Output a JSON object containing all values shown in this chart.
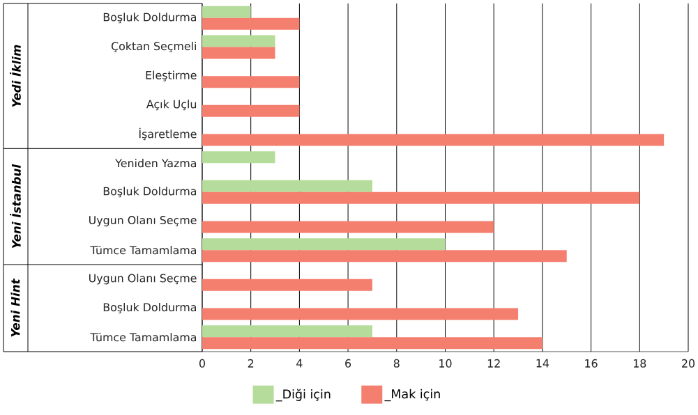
{
  "chart_data": {
    "type": "bar",
    "orientation": "horizontal",
    "categories": [
      "Boşluk Doldurma",
      "Çoktan Seçmeli",
      "Eleştirme",
      "Açık Uçlu",
      "İşaretleme",
      "Yeniden Yazma",
      "Boşluk Doldurma",
      "Uygun Olanı Seçme",
      "Tümce Tamamlama",
      "Uygun Olanı Seçme",
      "Boşluk Doldurma",
      "Tümce Tamamlama"
    ],
    "series": [
      {
        "name": "_Diği için",
        "color": "#b5dc9a",
        "values": [
          2,
          3,
          null,
          null,
          null,
          3,
          7,
          null,
          10,
          null,
          null,
          7
        ]
      },
      {
        "name": "_Mak için",
        "color": "#f47f6f",
        "values": [
          4,
          3,
          4,
          4,
          19,
          null,
          18,
          12,
          15,
          7,
          13,
          14
        ]
      }
    ],
    "annotations": [
      "Yedi İklim",
      "Yeni İstanbul",
      "Yeni Hint"
    ],
    "xlim": [
      0,
      20
    ],
    "xticks": [
      0,
      2,
      4,
      6,
      8,
      10,
      12,
      14,
      16,
      18,
      20
    ],
    "grid": "x",
    "legend": "bottom"
  }
}
